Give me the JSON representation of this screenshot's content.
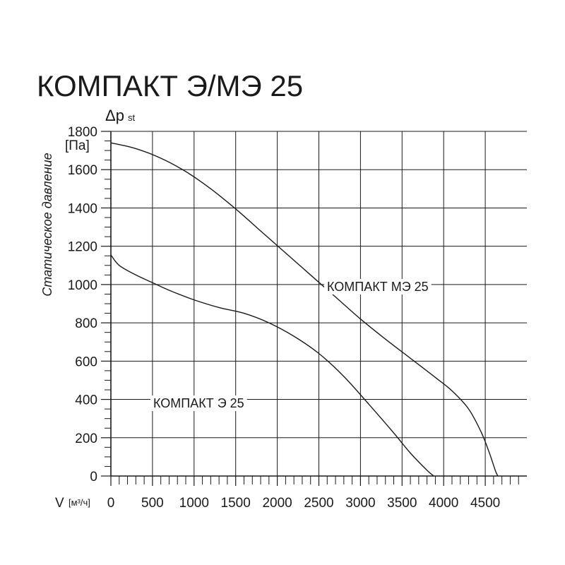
{
  "chart_data": {
    "type": "line",
    "title": "КОМПАКТ Э/МЭ 25",
    "y_symbol": "Δp",
    "y_symbol_sub": "st",
    "y_unit": "[Па]",
    "ylabel": "Статическое давление",
    "x_symbol": "V",
    "x_unit": "[м³/ч]",
    "xlim": [
      0,
      5000
    ],
    "ylim": [
      0,
      1800
    ],
    "x_ticks": [
      0,
      500,
      1000,
      1500,
      2000,
      2500,
      3000,
      3500,
      4000,
      4500
    ],
    "y_ticks": [
      0,
      200,
      400,
      600,
      800,
      1000,
      1200,
      1400,
      1600,
      1800
    ],
    "grid": true,
    "series": [
      {
        "name": "КОМПАКТ МЭ 25",
        "points": [
          [
            0,
            1740
          ],
          [
            300,
            1710
          ],
          [
            600,
            1660
          ],
          [
            900,
            1590
          ],
          [
            1200,
            1500
          ],
          [
            1500,
            1395
          ],
          [
            1800,
            1280
          ],
          [
            2100,
            1165
          ],
          [
            2400,
            1050
          ],
          [
            2700,
            935
          ],
          [
            3000,
            820
          ],
          [
            3300,
            715
          ],
          [
            3600,
            615
          ],
          [
            3900,
            515
          ],
          [
            4100,
            445
          ],
          [
            4300,
            350
          ],
          [
            4450,
            230
          ],
          [
            4550,
            120
          ],
          [
            4620,
            30
          ],
          [
            4650,
            0
          ]
        ]
      },
      {
        "name": "КОМПАКТ Э 25",
        "points": [
          [
            0,
            1155
          ],
          [
            100,
            1100
          ],
          [
            300,
            1050
          ],
          [
            500,
            1010
          ],
          [
            700,
            970
          ],
          [
            1000,
            920
          ],
          [
            1300,
            880
          ],
          [
            1600,
            850
          ],
          [
            1900,
            800
          ],
          [
            2200,
            730
          ],
          [
            2500,
            640
          ],
          [
            2800,
            520
          ],
          [
            3100,
            375
          ],
          [
            3400,
            225
          ],
          [
            3600,
            120
          ],
          [
            3800,
            30
          ],
          [
            3880,
            0
          ]
        ]
      }
    ]
  }
}
